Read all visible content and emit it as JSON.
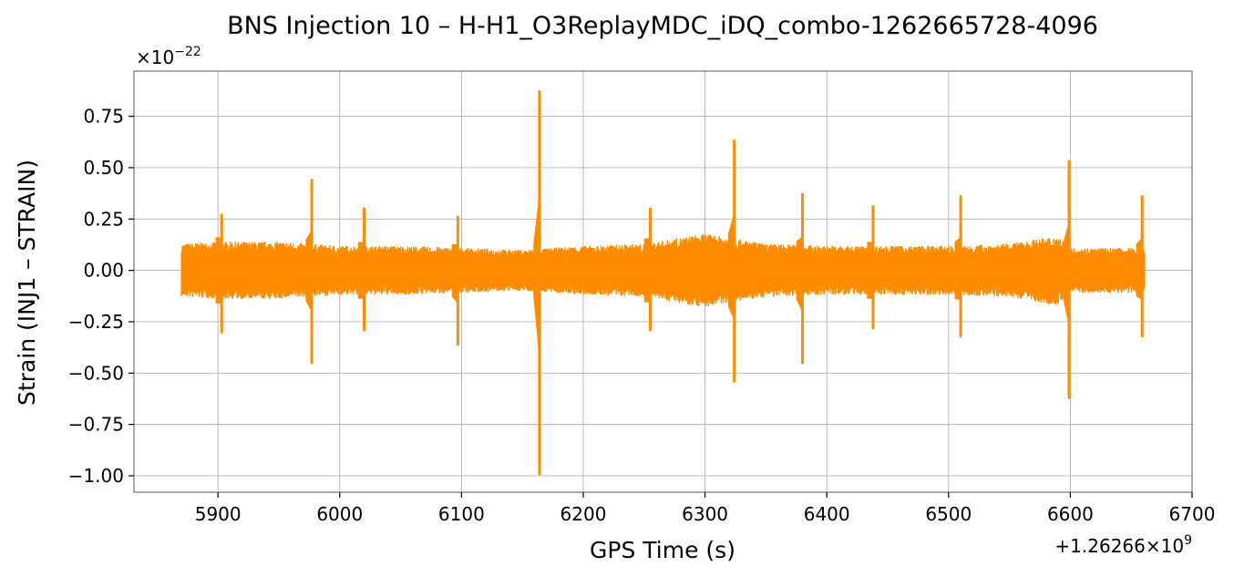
{
  "chart_data": {
    "type": "line",
    "title": "BNS Injection 10 – H-H1_O3ReplayMDC_iDQ_combo-1262665728-4096",
    "xlabel": "GPS Time (s)",
    "ylabel": "Strain (INJ1 – STRAIN)",
    "x_offset_text": {
      "prefix": "+1.26266×10",
      "exponent": "9"
    },
    "y_scale_text": {
      "prefix": "×10",
      "exponent": "−22"
    },
    "xlim": [
      5831,
      6700
    ],
    "ylim": [
      -1.08,
      0.97
    ],
    "xticks": [
      5900,
      6000,
      6100,
      6200,
      6300,
      6400,
      6500,
      6600,
      6700
    ],
    "xtick_labels": [
      "5900",
      "6000",
      "6100",
      "6200",
      "6300",
      "6400",
      "6500",
      "6600",
      "6700"
    ],
    "yticks": [
      0.75,
      0.5,
      0.25,
      0.0,
      -0.25,
      -0.5,
      -0.75,
      -1.0
    ],
    "ytick_labels": [
      "0.75",
      "0.50",
      "0.25",
      "0.00",
      "−0.25",
      "−0.50",
      "−0.75",
      "−1.00"
    ],
    "grid": true,
    "series": [
      {
        "color": "#ff8c00",
        "x_range": [
          5870,
          6661
        ],
        "noise_envelope": [
          [
            5870,
            0.13
          ],
          [
            5900,
            0.14
          ],
          [
            5950,
            0.14
          ],
          [
            6000,
            0.12
          ],
          [
            6050,
            0.12
          ],
          [
            6100,
            0.11
          ],
          [
            6150,
            0.1
          ],
          [
            6200,
            0.12
          ],
          [
            6250,
            0.13
          ],
          [
            6300,
            0.18
          ],
          [
            6350,
            0.13
          ],
          [
            6400,
            0.12
          ],
          [
            6450,
            0.12
          ],
          [
            6500,
            0.12
          ],
          [
            6550,
            0.13
          ],
          [
            6590,
            0.17
          ],
          [
            6600,
            0.11
          ],
          [
            6661,
            0.11
          ]
        ],
        "spikes": [
          {
            "x": 5903,
            "max": 0.27,
            "min": -0.3
          },
          {
            "x": 5977,
            "max": 0.44,
            "min": -0.45
          },
          {
            "x": 6020,
            "max": 0.3,
            "min": -0.29
          },
          {
            "x": 6097,
            "max": 0.26,
            "min": -0.36
          },
          {
            "x": 6164,
            "max": 0.87,
            "min": -0.99
          },
          {
            "x": 6255,
            "max": 0.3,
            "min": -0.29
          },
          {
            "x": 6324,
            "max": 0.63,
            "min": -0.54
          },
          {
            "x": 6380,
            "max": 0.37,
            "min": -0.45
          },
          {
            "x": 6438,
            "max": 0.31,
            "min": -0.28
          },
          {
            "x": 6510,
            "max": 0.36,
            "min": -0.32
          },
          {
            "x": 6599,
            "max": 0.53,
            "min": -0.62
          },
          {
            "x": 6659,
            "max": 0.36,
            "min": -0.32
          }
        ]
      }
    ]
  },
  "style": {
    "line_color": "#ff8c00",
    "grid_color": "#b0b0b0",
    "frame_color": "#808080"
  }
}
